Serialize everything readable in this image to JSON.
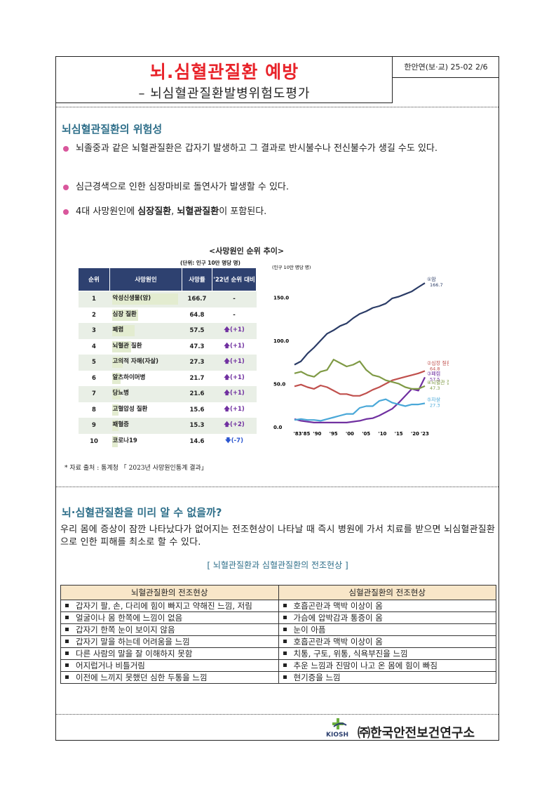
{
  "header": {
    "title": "뇌.심혈관질환 예방",
    "subtitle": "– 뇌심혈관질환발병위험도평가",
    "doc_code": "한안연(보·교) 25-02 2/6"
  },
  "section1": {
    "title": "뇌심혈관질환의 위험성",
    "bullets": [
      {
        "text": "뇌졸중과 같은 뇌혈관질환은 갑자기 발생하고 그 결과로 반시불수나 전신불수가 생길 수도 있다."
      },
      {
        "text": "심근경색으로 인한 심장마비로 돌연사가 발생할 수 있다."
      },
      {
        "pre": "4대 사망원인에 ",
        "b1": "심장질환",
        "mid": ", ",
        "b2": "뇌혈관질환",
        "post": "이 포함된다."
      }
    ]
  },
  "chart_title": "<사망원인 순위 추이>",
  "ranking_table": {
    "unit": "(단위: 인구 10만 명당 명)",
    "headers": [
      "순위",
      "사망원인",
      "사망률",
      "'22년 순위 대비"
    ],
    "rows": [
      {
        "rank": "1",
        "cause": "악성신생물(암)",
        "rate": "166.7",
        "change": "-",
        "dir": "none",
        "bar": 1.0
      },
      {
        "rank": "2",
        "cause": "심장 질환",
        "rate": "64.8",
        "change": "-",
        "dir": "none",
        "bar": 0.39
      },
      {
        "rank": "3",
        "cause": "폐렴",
        "rate": "57.5",
        "change": "(+1)",
        "dir": "up",
        "bar": 0.345
      },
      {
        "rank": "4",
        "cause": "뇌혈관 질환",
        "rate": "47.3",
        "change": "(+1)",
        "dir": "up",
        "bar": 0.284
      },
      {
        "rank": "5",
        "cause": "고의적 자해(자살)",
        "rate": "27.3",
        "change": "(+1)",
        "dir": "up",
        "bar": 0.164
      },
      {
        "rank": "6",
        "cause": "알츠하이머병",
        "rate": "21.7",
        "change": "(+1)",
        "dir": "up",
        "bar": 0.13
      },
      {
        "rank": "7",
        "cause": "당뇨병",
        "rate": "21.6",
        "change": "(+1)",
        "dir": "up",
        "bar": 0.13
      },
      {
        "rank": "8",
        "cause": "고혈압성 질환",
        "rate": "15.6",
        "change": "(+1)",
        "dir": "up",
        "bar": 0.094
      },
      {
        "rank": "9",
        "cause": "패혈증",
        "rate": "15.3",
        "change": "(+2)",
        "dir": "up",
        "bar": 0.092
      },
      {
        "rank": "10",
        "cause": "코로나19",
        "rate": "14.6",
        "change": "(-7)",
        "dir": "down",
        "bar": 0.088
      }
    ]
  },
  "chart_data": {
    "type": "line",
    "title": "",
    "unit_label": "(인구 10만 명당 명)",
    "ylim": [
      0,
      175
    ],
    "yticks": [
      "0.0",
      "50.0",
      "100.0",
      "150.0"
    ],
    "x_tick_labels": [
      "'83'85",
      "'90",
      "'95",
      "'00",
      "'05",
      "'10",
      "'15",
      "'20",
      "'23"
    ],
    "x_tick_years": [
      1984,
      1990,
      1995,
      2000,
      2005,
      2010,
      2015,
      2020,
      2023
    ],
    "xlim": [
      1983,
      2023
    ],
    "series": [
      {
        "name": "①암",
        "end_label": "166.7",
        "color": "#2a3b66",
        "x": [
          1983,
          1985,
          1987,
          1989,
          1991,
          1993,
          1995,
          1997,
          1999,
          2001,
          2003,
          2005,
          2007,
          2009,
          2011,
          2013,
          2015,
          2017,
          2019,
          2021,
          2023
        ],
        "y": [
          72,
          76,
          85,
          92,
          100,
          108,
          112,
          117,
          120,
          126,
          131,
          134,
          138,
          140,
          143,
          149,
          151,
          154,
          157,
          162,
          166.7
        ]
      },
      {
        "name": "②심장 질환",
        "end_label": "64.8",
        "color": "#c0504d",
        "x": [
          1983,
          1985,
          1987,
          1989,
          1991,
          1993,
          1995,
          1997,
          1999,
          2001,
          2003,
          2005,
          2007,
          2009,
          2011,
          2013,
          2015,
          2017,
          2019,
          2021,
          2023
        ],
        "y": [
          47,
          49,
          46,
          44,
          48,
          46,
          42,
          38,
          38,
          36,
          36,
          39,
          43,
          46,
          50,
          54,
          56,
          58,
          60,
          62,
          64.8
        ]
      },
      {
        "name": "③폐렴",
        "end_label": "57.5",
        "color": "#7030a0",
        "x": [
          1983,
          1985,
          1987,
          1989,
          1991,
          1993,
          1995,
          1997,
          1999,
          2001,
          2003,
          2005,
          2007,
          2009,
          2011,
          2013,
          2015,
          2017,
          2019,
          2021,
          2023
        ],
        "y": [
          9,
          7,
          6,
          5,
          5,
          5,
          5,
          5,
          5,
          6,
          7,
          9,
          10,
          13,
          17,
          21,
          28,
          36,
          44,
          42,
          57.5
        ]
      },
      {
        "name": "④뇌혈관 질환",
        "end_label": "47.3",
        "color": "#7f9a45",
        "x": [
          1983,
          1985,
          1987,
          1989,
          1991,
          1993,
          1995,
          1997,
          1999,
          2001,
          2003,
          2005,
          2007,
          2009,
          2011,
          2013,
          2015,
          2017,
          2019,
          2021,
          2023
        ],
        "y": [
          62,
          64,
          60,
          58,
          64,
          66,
          78,
          74,
          70,
          72,
          76,
          66,
          60,
          58,
          54,
          52,
          50,
          46,
          44,
          44,
          47.3
        ]
      },
      {
        "name": "⑤자살",
        "end_label": "27.3",
        "color": "#4aa8d8",
        "x": [
          1983,
          1985,
          1987,
          1989,
          1991,
          1993,
          1995,
          1997,
          1999,
          2001,
          2003,
          2005,
          2007,
          2009,
          2011,
          2013,
          2015,
          2017,
          2019,
          2021,
          2023
        ],
        "y": [
          8,
          9,
          8,
          8,
          7,
          9,
          11,
          13,
          15,
          15,
          22,
          24,
          24,
          30,
          32,
          28,
          26,
          24,
          26,
          26,
          27.3
        ]
      }
    ]
  },
  "source_note": "* 자료 출처 : 통계청 「 2023년 사망원인통계 결과」",
  "section2": {
    "title": "뇌·심혈관질환을 미리 알 수 없을까?",
    "lead": "우리 몸에 증상이 잠깐 나타났다가 없어지는 전조현상이 나타날 때 즉시 병원에 가서 치료를 받으면 뇌심혈관질환으로 인한 피해를 최소로 할 수 있다.",
    "caption": "[ 뇌혈관질환과 심혈관질환의 전조현상 ]",
    "table_headers": [
      "뇌혈관질환의 전조현상",
      "심혈관질환의 전조현상"
    ],
    "table_rows": [
      [
        "갑자기 팔, 손, 다리에 힘이 빠지고 약해진 느낌, 저림",
        "호흡곤란과 맥박 이상이 옴"
      ],
      [
        "얼굴이나 몸 한쪽에 느낌이 없음",
        "가슴에 압박감과 통증이 옴"
      ],
      [
        "갑자기 한쪽 눈이 보이지 않음",
        "눈이 아픔"
      ],
      [
        "갑자기 말을 하는데 어려움을 느낌",
        "호흡곤란과 맥박 이상이 옴"
      ],
      [
        "다른 사람의 말을 잘 이해하지 못함",
        "치통, 구토, 위통, 식욕부진을 느낌"
      ],
      [
        "어지럽거나 비틀거림",
        "추운 느낌과 진땀이 나고 온 몸에 힘이 빠짐"
      ],
      [
        "이전에 느끼지 못했던 심한 두통을 느낌",
        "현기증을 느낌"
      ]
    ]
  },
  "footer": {
    "logo_text": "KIOSH",
    "org_name": "㈜한국안전보건연구소"
  }
}
